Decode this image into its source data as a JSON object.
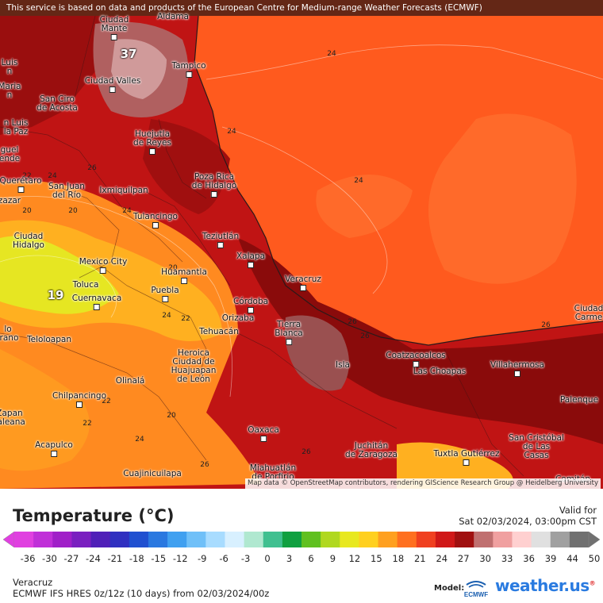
{
  "banner": "This service is based on data and products of the European Centre for Medium-range Weather Forecasts (ECMWF)",
  "attribution": "Map data © OpenStreetMap contributors, rendering GIScience Research Group @ Heidelberg University",
  "colors": {
    "gulf": "#ff5a1e",
    "gulf_light": "#ff6a28",
    "land_hot": "#a01010",
    "land_dark": "#7a0a0a",
    "land_mid": "#e02020",
    "peak": "#c89090",
    "highland_orange": "#ffa020",
    "highland_yellow": "#e8ea20"
  },
  "map": {
    "peak_labels": [
      "37",
      "19"
    ],
    "isotherm_labels": [
      "24",
      "24",
      "24",
      "20",
      "20",
      "20",
      "26",
      "22",
      "22",
      "24",
      "24",
      "26",
      "24",
      "24",
      "26",
      "26",
      "26",
      "20",
      "22",
      "22",
      "26"
    ],
    "cities": [
      {
        "name": "Aldama"
      },
      {
        "name": "Ciudad\nMante"
      },
      {
        "name": "Tampico"
      },
      {
        "name": "Ciudad Valles"
      },
      {
        "name": "Luis\nn"
      },
      {
        "name": "Maria\nn"
      },
      {
        "name": "San Ciro\nde Acosta"
      },
      {
        "name": "n Luis\nla Paz"
      },
      {
        "name": "Huejutla\nde Reyes"
      },
      {
        "name": "guel\nende"
      },
      {
        "name": "Poza Rica\nde Hidalgo"
      },
      {
        "name": "Querétaro"
      },
      {
        "name": "San Juan\ndel Río"
      },
      {
        "name": "Ixmiquilpan"
      },
      {
        "name": "zazar"
      },
      {
        "name": "Tulancingo"
      },
      {
        "name": "Teziutlán"
      },
      {
        "name": "Ciudad\nHidalgo"
      },
      {
        "name": "Xalapa"
      },
      {
        "name": "Mexico City"
      },
      {
        "name": "Huamantla"
      },
      {
        "name": "Veracruz"
      },
      {
        "name": "Toluca"
      },
      {
        "name": "Puebla"
      },
      {
        "name": "Cuernavaca"
      },
      {
        "name": "Córdoba"
      },
      {
        "name": "Orizaba"
      },
      {
        "name": "Tierra\nBlanca"
      },
      {
        "name": "Ciudad\nCarme"
      },
      {
        "name": "Tehuacán"
      },
      {
        "name": "lo\nirano"
      },
      {
        "name": "Teloloapan"
      },
      {
        "name": "Coatzacoalcos"
      },
      {
        "name": "Heroica\nCiudad de\nHuajuapan\nde León"
      },
      {
        "name": "Isla"
      },
      {
        "name": "Las Choapas"
      },
      {
        "name": "Villahermosa"
      },
      {
        "name": "Olinalá"
      },
      {
        "name": "Chilpancingo"
      },
      {
        "name": "Palenque"
      },
      {
        "name": "Zapan\nraleana"
      },
      {
        "name": "Oaxaca"
      },
      {
        "name": "San Cristóbal\nde Las\nCasas"
      },
      {
        "name": "Acapulco"
      },
      {
        "name": "Tuxtla Gutiérrez"
      },
      {
        "name": "Juchitán\nde Zaragoza"
      },
      {
        "name": "Miahuatlán\nde Porfirio"
      },
      {
        "name": "Cuajinicuilapa"
      },
      {
        "name": "Comitán"
      }
    ]
  },
  "legend": {
    "title": "Temperature (°C)",
    "valid_label": "Valid for",
    "valid_date": "Sat 02/03/2024, 03:00pm CST",
    "ticks": [
      "-36",
      "-30",
      "-27",
      "-24",
      "-21",
      "-18",
      "-15",
      "-12",
      "-9",
      "-6",
      "-3",
      "0",
      "3",
      "6",
      "9",
      "12",
      "15",
      "18",
      "21",
      "24",
      "27",
      "30",
      "33",
      "36",
      "39",
      "44",
      "50"
    ],
    "stops": [
      "#e040e0",
      "#c030d8",
      "#a020c8",
      "#7a20c0",
      "#5020b8",
      "#3030c0",
      "#2050d0",
      "#2a78e0",
      "#40a0f0",
      "#70c0f8",
      "#a8dcff",
      "#d8f0ff",
      "#b0e8d0",
      "#40c090",
      "#10a040",
      "#60c020",
      "#b0d820",
      "#e8e820",
      "#ffd020",
      "#ffa020",
      "#ff7020",
      "#f04020",
      "#d01818",
      "#a01010",
      "#c07070",
      "#f0a0a0",
      "#ffd0d0",
      "#e0e0e0",
      "#a0a0a0",
      "#707070"
    ]
  },
  "footer": {
    "region": "Veracruz",
    "model_run": "ECMWF IFS HRES 0z/12z (10 days) from  02/03/2024/00z",
    "model_label": "Model:",
    "ecmwf_text": "ECMWF",
    "brand": "weather.us",
    "brand_mark": "®"
  }
}
